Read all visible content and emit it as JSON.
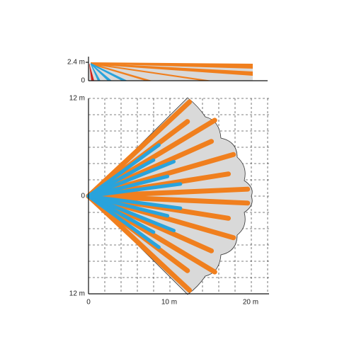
{
  "side_view": {
    "y_labels": [
      "2.4 m",
      "0"
    ]
  },
  "top_view": {
    "y_labels": [
      "12 m",
      "0",
      "12 m"
    ],
    "x_labels": [
      "0",
      "10 m",
      "20 m"
    ]
  }
}
